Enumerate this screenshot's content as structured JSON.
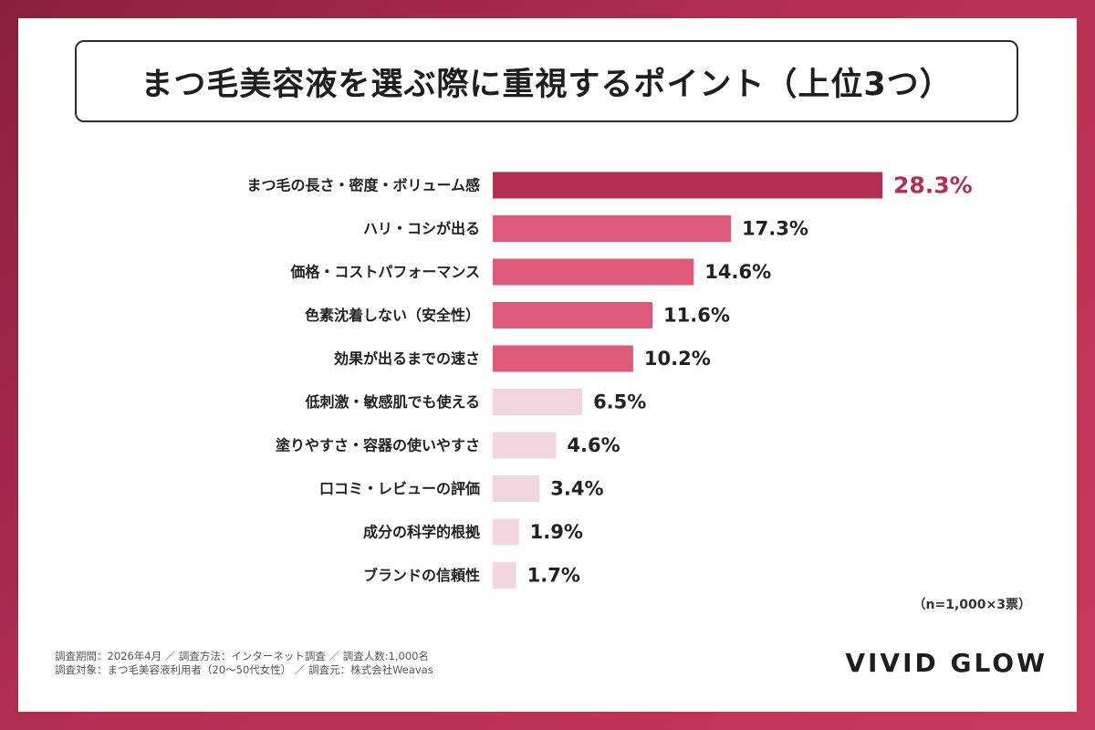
{
  "title": "まつ毛美容液を選ぶ際に重視するポイント（上位3つ）",
  "sample_note": "（n=1,000×3票）",
  "footer": {
    "line1": "調査期間：2026年4月 ／ 調査方法：インターネット調査 ／ 調査人数:1,000名",
    "line2": "調査対象：まつ毛美容液利用者（20〜50代女性） ／ 調査元：株式会社Weavas"
  },
  "brand": "VIVID GLOW",
  "colors": {
    "top": "#b32f52",
    "high": "#de5a78",
    "low": "#f2d6df"
  },
  "chart_data": {
    "type": "bar",
    "orientation": "horizontal",
    "unit": "%",
    "categories": [
      "まつ毛の長さ・密度・ボリューム感",
      "ハリ・コシが出る",
      "価格・コストパフォーマンス",
      "色素沈着しない（安全性）",
      "効果が出るまでの速さ",
      "低刺激・敏感肌でも使える",
      "塗りやすさ・容器の使いやすさ",
      "口コミ・レビューの評価",
      "成分の科学的根拠",
      "ブランドの信頼性"
    ],
    "values": [
      28.3,
      17.3,
      14.6,
      11.6,
      10.2,
      6.5,
      4.6,
      3.4,
      1.9,
      1.7
    ],
    "value_labels": [
      "28.3%",
      "17.3%",
      "14.6%",
      "11.6%",
      "10.2%",
      "6.5%",
      "4.6%",
      "3.4%",
      "1.9%",
      "1.7%"
    ],
    "xlim": [
      0,
      28.3
    ],
    "grid": false,
    "legend": "none"
  }
}
